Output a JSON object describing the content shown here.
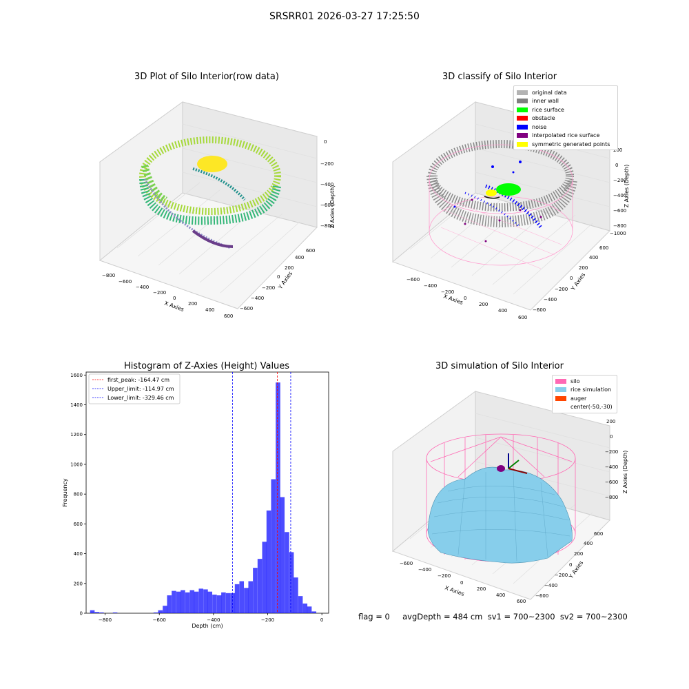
{
  "figure": {
    "title": "SRSRR01 2026-03-27 17:25:50",
    "status_line": "flag = 0     avgDepth = 484 cm  sv1 = 700~2300  sv2 = 700~2300"
  },
  "panels": {
    "raw": {
      "title": "3D Plot of Silo Interior(row data)",
      "xlabel": "X Axies",
      "ylabel": "Y Axies",
      "zlabel": "Z Axies (Depth)",
      "xticks": [
        "−800",
        "−600",
        "−400",
        "−200",
        "0",
        "200",
        "400",
        "600"
      ],
      "yticks": [
        "−600",
        "−400",
        "−200",
        "0",
        "200",
        "400",
        "600"
      ],
      "zticks": [
        "0",
        "−200",
        "−400",
        "−600",
        "−800"
      ]
    },
    "classify": {
      "title": "3D classify of Silo Interior",
      "xlabel": "X Axies",
      "ylabel": "Y Axies",
      "zlabel": "Z Axies (Depth)",
      "xticks": [
        "−600",
        "−400",
        "−200",
        "0",
        "200",
        "400",
        "600"
      ],
      "yticks": [
        "−600",
        "−400",
        "−200",
        "0",
        "200",
        "400",
        "600"
      ],
      "zticks": [
        "200",
        "0",
        "−200",
        "−400",
        "−600",
        "−800",
        "−1000"
      ],
      "legend": [
        {
          "label": "original data",
          "color": "#b3b3b3"
        },
        {
          "label": "inner wall",
          "color": "#808080"
        },
        {
          "label": "rice surface",
          "color": "#00ff00"
        },
        {
          "label": "obstacle",
          "color": "#ff0000"
        },
        {
          "label": "noise",
          "color": "#0000ff"
        },
        {
          "label": "interpolated rice surface",
          "color": "#800080"
        },
        {
          "label": "symmetric generated points",
          "color": "#ffff00"
        }
      ]
    },
    "simulation": {
      "title": "3D simulation of Silo Interior",
      "xlabel": "X Axies",
      "ylabel": "Y Axies",
      "zlabel": "Z Axies (Depth)",
      "xticks": [
        "−600",
        "−400",
        "−200",
        "0",
        "200",
        "400",
        "600"
      ],
      "yticks": [
        "−600",
        "−400",
        "−200",
        "0",
        "200",
        "400",
        "600"
      ],
      "zticks": [
        "200",
        "0",
        "−200",
        "−400",
        "−600",
        "−800"
      ],
      "legend": [
        {
          "label": "silo",
          "color": "#ff69b4"
        },
        {
          "label": "rice simulation",
          "color": "#87ceeb"
        },
        {
          "label": "auger",
          "color": "#ff4500"
        },
        {
          "label": "center(-50,-30)",
          "color": ""
        }
      ]
    }
  },
  "chart_data": [
    {
      "type": "bar",
      "title": "Histogram of Z-Axies (Height) Values",
      "xlabel": "Depth (cm)",
      "ylabel": "Frequency",
      "xlim": [
        -870,
        25
      ],
      "ylim": [
        0,
        1620
      ],
      "xticks": [
        -800,
        -600,
        -400,
        -200,
        0
      ],
      "xtick_labels": [
        "−800",
        "−600",
        "−400",
        "−200",
        "0"
      ],
      "yticks": [
        0,
        200,
        400,
        600,
        800,
        1000,
        1200,
        1400,
        1600
      ],
      "bar_color": "#0000ff",
      "bin_width": 16.7,
      "bins": [
        {
          "x": -847,
          "v": 20
        },
        {
          "x": -830,
          "v": 8
        },
        {
          "x": -813,
          "v": 5
        },
        {
          "x": -763,
          "v": 5
        },
        {
          "x": -613,
          "v": 5
        },
        {
          "x": -596,
          "v": 20
        },
        {
          "x": -579,
          "v": 50
        },
        {
          "x": -563,
          "v": 120
        },
        {
          "x": -546,
          "v": 150
        },
        {
          "x": -529,
          "v": 145
        },
        {
          "x": -513,
          "v": 155
        },
        {
          "x": -496,
          "v": 140
        },
        {
          "x": -479,
          "v": 155
        },
        {
          "x": -463,
          "v": 145
        },
        {
          "x": -446,
          "v": 165
        },
        {
          "x": -429,
          "v": 160
        },
        {
          "x": -413,
          "v": 145
        },
        {
          "x": -396,
          "v": 125
        },
        {
          "x": -379,
          "v": 120
        },
        {
          "x": -363,
          "v": 140
        },
        {
          "x": -346,
          "v": 135
        },
        {
          "x": -329,
          "v": 135
        },
        {
          "x": -313,
          "v": 195
        },
        {
          "x": -296,
          "v": 215
        },
        {
          "x": -279,
          "v": 170
        },
        {
          "x": -263,
          "v": 215
        },
        {
          "x": -246,
          "v": 305
        },
        {
          "x": -229,
          "v": 365
        },
        {
          "x": -212,
          "v": 480
        },
        {
          "x": -196,
          "v": 690
        },
        {
          "x": -179,
          "v": 900
        },
        {
          "x": -162,
          "v": 1550
        },
        {
          "x": -146,
          "v": 780
        },
        {
          "x": -129,
          "v": 545
        },
        {
          "x": -112,
          "v": 410
        },
        {
          "x": -96,
          "v": 240
        },
        {
          "x": -79,
          "v": 115
        },
        {
          "x": -62,
          "v": 65
        },
        {
          "x": -46,
          "v": 45
        },
        {
          "x": -29,
          "v": 12
        }
      ],
      "vlines": [
        {
          "label": "first_peak: -164.47 cm",
          "x": -164.47,
          "color": "#ff0000"
        },
        {
          "label": "Upper_limit: -114.97 cm",
          "x": -114.97,
          "color": "#0000ff"
        },
        {
          "label": "Lower_limit: -329.46 cm",
          "x": -329.46,
          "color": "#0000ff"
        }
      ]
    }
  ]
}
